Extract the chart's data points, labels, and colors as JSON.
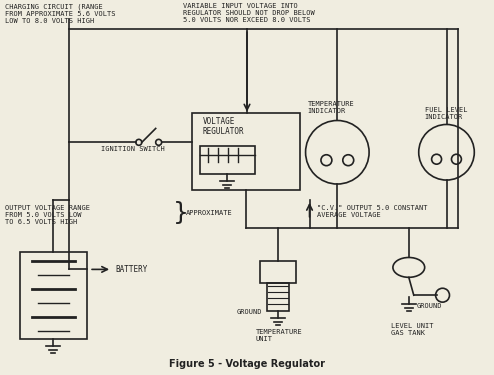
{
  "title": "Figure 5 - Voltage Regulator",
  "bg_color": "#f0ede0",
  "line_color": "#222222",
  "text_color": "#222222",
  "annotations": {
    "charging_circuit": "CHARGING CIRCUIT (RANGE\nFROM APPROXIMATE 5.6 VOLTS\nLOW TO 8.0 VOLTS HIGH",
    "variable_input": "VARIABLE INPUT VOLTAGE INTO\nREGULATOR SHOULD NOT DROP BELOW\n5.0 VOLTS NOR EXCEED 8.0 VOLTS",
    "voltage_regulator": "VOLTAGE\nREGULATOR",
    "ignition_switch": "IGNITION SWITCH",
    "output_voltage": "OUTPUT VOLTAGE RANGE\nFROM 5.0 VOLTS LOW\nTO 6.5 VOLTS HIGH",
    "approximate": "APPROXIMATE",
    "cv_output": "\"C.V.\" OUTPUT 5.0 CONSTANT\nAVERAGE VOLTAGE",
    "temperature_indicator": "TEMPERATURE\nINDICATOR",
    "fuel_level_indicator": "FUEL LEVEL\nINDICATOR",
    "battery": "BATTERY",
    "ground_left": "GROUND",
    "temperature_unit": "TEMPERATURE\nUNIT",
    "level_unit": "LEVEL UNIT\nGAS TANK",
    "ground_right": "GROUND"
  }
}
